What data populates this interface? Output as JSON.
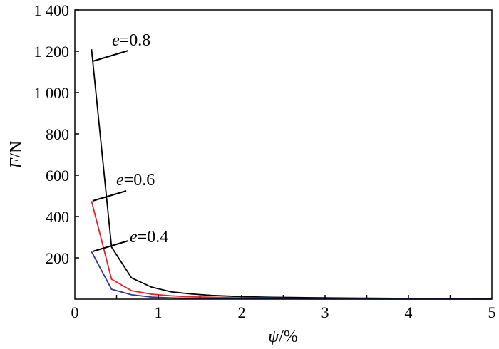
{
  "chart_data": {
    "type": "line",
    "title": "",
    "xlabel": "ψ/%",
    "xlabel_parts": [
      "ψ",
      "/%"
    ],
    "ylabel": "F/N",
    "ylabel_parts": [
      "F",
      "/N"
    ],
    "xlim": [
      0,
      5
    ],
    "ylim": [
      0,
      1400
    ],
    "xticks": [
      0,
      1,
      2,
      3,
      4,
      5
    ],
    "xtick_labels": [
      "0",
      "1",
      "2",
      "3",
      "4",
      "5"
    ],
    "yticks": [
      200,
      400,
      600,
      800,
      1000,
      1200,
      1400
    ],
    "ytick_labels": [
      "200",
      "400",
      "600",
      "800",
      "1 000",
      "1 200",
      "1 400"
    ],
    "grid": false,
    "x": [
      0.2,
      0.44,
      0.68,
      0.92,
      1.16,
      1.4,
      1.64,
      1.88,
      2.12,
      2.36,
      2.6,
      2.84,
      3.08,
      3.32,
      3.56,
      3.8,
      4.04,
      4.28,
      4.52,
      4.76,
      5.0
    ],
    "series": [
      {
        "name": "e=0.8",
        "label_var": "e",
        "label_val": "=0.8",
        "color": "#000000",
        "values": [
          1210,
          252,
          103,
          58,
          35,
          25,
          18,
          14,
          11,
          9,
          8,
          7,
          6,
          5,
          4.5,
          4,
          3.5,
          3,
          3,
          2.5,
          2
        ]
      },
      {
        "name": "e=0.6",
        "label_var": "e",
        "label_val": "=0.6",
        "color": "#e8202a",
        "values": [
          475,
          97,
          41,
          24,
          16,
          11,
          9,
          7,
          6,
          5,
          4,
          3.5,
          3,
          2.5,
          2,
          2,
          1.5,
          1.5,
          1,
          1,
          1
        ]
      },
      {
        "name": "e=0.4",
        "label_var": "e",
        "label_val": "=0.4",
        "color": "#2b3a8f",
        "values": [
          230,
          48,
          21,
          10,
          6,
          4,
          3,
          2.5,
          2,
          1.5,
          1.2,
          1,
          1,
          0.8,
          0.7,
          0.6,
          0.5,
          0.5,
          0.4,
          0.4,
          0.3
        ]
      }
    ]
  }
}
